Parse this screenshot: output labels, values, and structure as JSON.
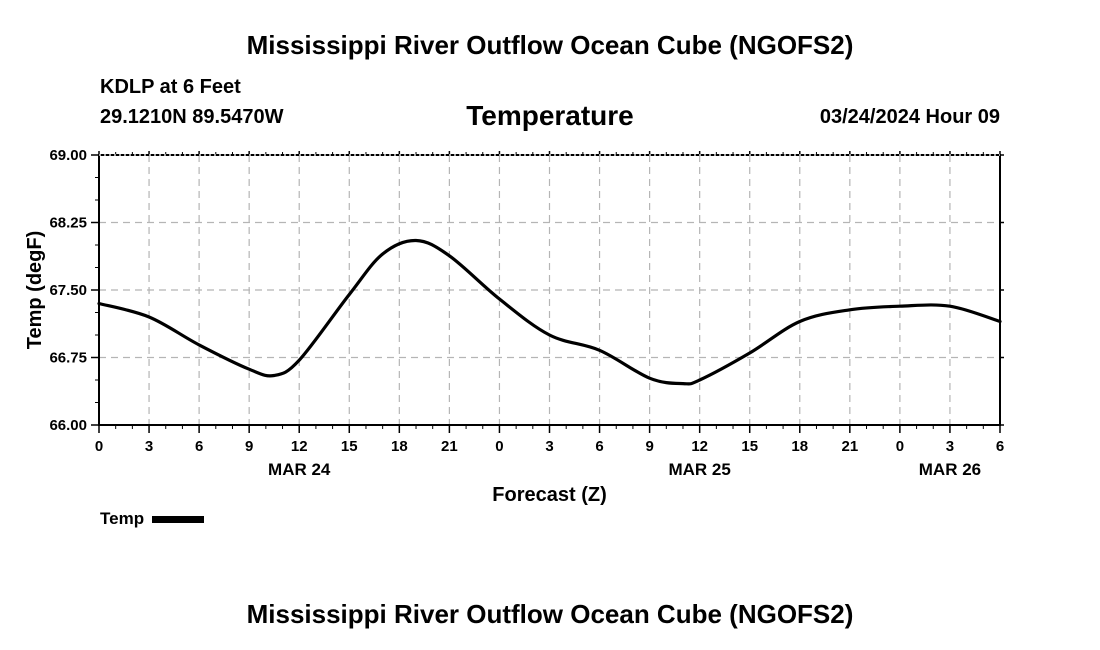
{
  "header": {
    "title": "Mississippi River Outflow Ocean Cube (NGOFS2)",
    "station": "KDLP at 6 Feet",
    "coords": "29.1210N  89.5470W",
    "subtitle": "Temperature",
    "datetime": "03/24/2024 Hour 09"
  },
  "footer": {
    "title": "Mississippi River Outflow Ocean Cube (NGOFS2)"
  },
  "legend": {
    "label": "Temp"
  },
  "chart_data": {
    "type": "line",
    "title": "Temperature",
    "xlabel": "Forecast (Z)",
    "ylabel": "Temp (degF)",
    "xlim": [
      0,
      54
    ],
    "ylim": [
      66.0,
      69.0
    ],
    "x_unit": "hours from 03/24 00Z",
    "yticks": [
      "69.00",
      "68.25",
      "67.50",
      "66.75",
      "66.00"
    ],
    "ytick_values": [
      69.0,
      68.25,
      67.5,
      66.75,
      66.0
    ],
    "xticks": [
      {
        "h": 0,
        "label": "0"
      },
      {
        "h": 3,
        "label": "3"
      },
      {
        "h": 6,
        "label": "6"
      },
      {
        "h": 9,
        "label": "9"
      },
      {
        "h": 12,
        "label": "12"
      },
      {
        "h": 15,
        "label": "15"
      },
      {
        "h": 18,
        "label": "18"
      },
      {
        "h": 21,
        "label": "21"
      },
      {
        "h": 24,
        "label": "0"
      },
      {
        "h": 27,
        "label": "3"
      },
      {
        "h": 30,
        "label": "6"
      },
      {
        "h": 33,
        "label": "9"
      },
      {
        "h": 36,
        "label": "12"
      },
      {
        "h": 39,
        "label": "15"
      },
      {
        "h": 42,
        "label": "18"
      },
      {
        "h": 45,
        "label": "21"
      },
      {
        "h": 48,
        "label": "0"
      },
      {
        "h": 51,
        "label": "3"
      },
      {
        "h": 54,
        "label": "6"
      }
    ],
    "date_labels": [
      {
        "h": 12,
        "label": "MAR 24"
      },
      {
        "h": 36,
        "label": "MAR 25"
      },
      {
        "h": 51,
        "label": "MAR 26"
      }
    ],
    "grid": true,
    "series": [
      {
        "name": "Temp",
        "x": [
          0,
          3,
          6,
          9,
          10.5,
          12,
          15,
          17,
          19,
          21,
          24,
          27,
          30,
          33,
          35,
          36,
          39,
          42,
          45,
          48,
          51,
          54
        ],
        "values": [
          67.35,
          67.2,
          66.89,
          66.62,
          66.55,
          66.72,
          67.45,
          67.9,
          68.05,
          67.88,
          67.4,
          67.0,
          66.83,
          66.52,
          66.46,
          66.5,
          66.8,
          67.15,
          67.28,
          67.32,
          67.32,
          67.15
        ]
      }
    ]
  }
}
